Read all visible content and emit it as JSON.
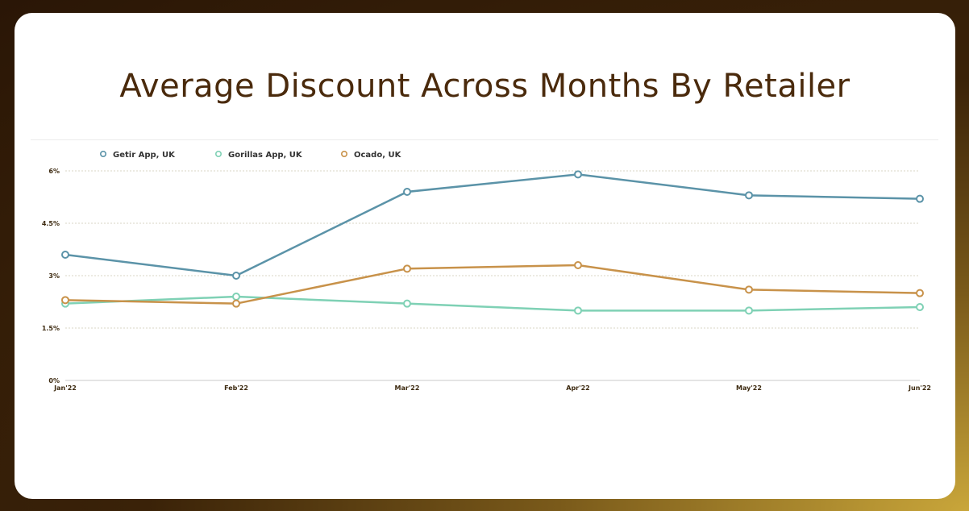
{
  "title": "Average Discount Across Months By Retailer",
  "chart_data": {
    "type": "line",
    "categories": [
      "Jan'22",
      "Feb'22",
      "Mar'22",
      "Apr'22",
      "May'22",
      "Jun'22"
    ],
    "yticks": [
      "0%",
      "1.5%",
      "3%",
      "4.5%",
      "6%"
    ],
    "ylim": [
      0,
      6
    ],
    "grid": true,
    "legend_position": "top-left",
    "series": [
      {
        "name": "Getir App, UK",
        "color": "#5b93a8",
        "values": [
          3.6,
          3.0,
          5.4,
          5.9,
          5.3,
          5.2
        ]
      },
      {
        "name": "Gorillas App, UK",
        "color": "#7fd1b5",
        "values": [
          2.2,
          2.4,
          2.2,
          2.0,
          2.0,
          2.1
        ]
      },
      {
        "name": "Ocado, UK",
        "color": "#c8924a",
        "values": [
          2.3,
          2.2,
          3.2,
          3.3,
          2.6,
          2.5
        ]
      }
    ]
  }
}
